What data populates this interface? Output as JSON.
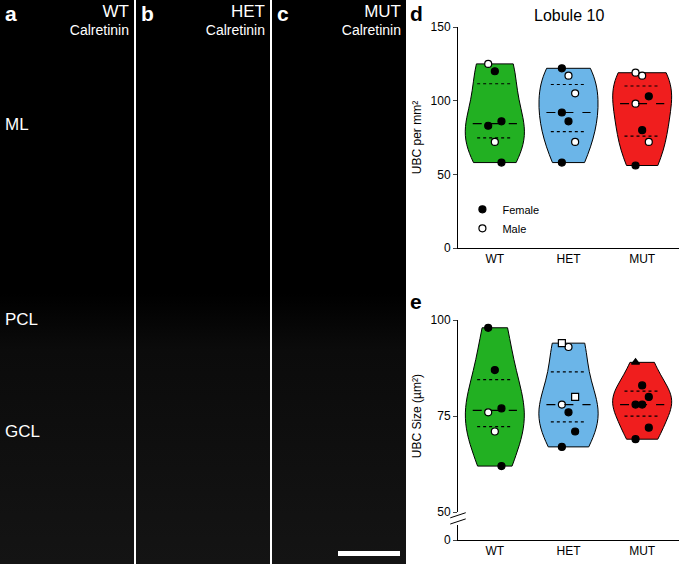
{
  "image_panels": [
    {
      "letter": "a",
      "genotype": "WT",
      "stain": "Calretinin",
      "layers": [
        "ML",
        "PCL",
        "GCL"
      ]
    },
    {
      "letter": "b",
      "genotype": "HET",
      "stain": "Calretinin"
    },
    {
      "letter": "c",
      "genotype": "MUT",
      "stain": "Calretinin",
      "scale_bar": true
    }
  ],
  "chart_data": [
    {
      "panel": "d",
      "type": "violin",
      "title": "Lobule 10",
      "ylabel": "UBC per mm²",
      "categories": [
        "WT",
        "HET",
        "MUT"
      ],
      "colors": [
        "#22b022",
        "#6bb5e8",
        "#f01e1e"
      ],
      "values": [
        [
          125,
          120,
          86,
          83,
          72,
          58
        ],
        [
          122,
          117,
          105,
          92,
          86,
          72,
          58
        ],
        [
          119,
          117,
          103,
          98,
          80,
          72,
          56
        ]
      ],
      "markers": [
        [
          "circle-open",
          "circle",
          "circle",
          "circle",
          "circle-open",
          "circle"
        ],
        [
          "circle",
          "circle-open",
          "circle-open",
          "circle",
          "circle",
          "circle-open",
          "circle"
        ],
        [
          "circle-open",
          "circle-open",
          "circle",
          "circle-open",
          "circle",
          "circle-open",
          "circle"
        ]
      ],
      "ylim": [
        0,
        150
      ],
      "yticks": [
        0,
        50,
        100,
        150
      ],
      "grid": false,
      "legend": "bottom left",
      "legend_entries": [
        {
          "name": "Female",
          "marker": "circle"
        },
        {
          "name": "Male",
          "marker": "circle-open"
        }
      ]
    },
    {
      "panel": "e",
      "type": "violin",
      "ylabel": "UBC Size (µm²)",
      "categories": [
        "WT",
        "HET",
        "MUT"
      ],
      "colors": [
        "#22b022",
        "#6bb5e8",
        "#f01e1e"
      ],
      "values": [
        [
          98,
          87,
          77,
          76,
          71,
          62
        ],
        [
          94,
          93,
          80,
          78,
          76,
          71,
          67
        ],
        [
          89,
          83,
          80,
          78,
          78,
          72,
          69
        ]
      ],
      "markers": [
        [
          "circle",
          "circle",
          "circle",
          "circle-open",
          "circle-open",
          "circle"
        ],
        [
          "square-open",
          "circle-open",
          "square-open",
          "circle-open",
          "circle",
          "circle",
          "circle"
        ],
        [
          "triangle-up",
          "circle",
          "circle",
          "circle",
          "circle",
          "circle",
          "circle"
        ]
      ],
      "ylim": [
        50,
        100
      ],
      "yticks": [
        50,
        75,
        100
      ],
      "y2lim": [
        0,
        10
      ],
      "y2ticks": [
        0
      ],
      "grid": false
    }
  ]
}
